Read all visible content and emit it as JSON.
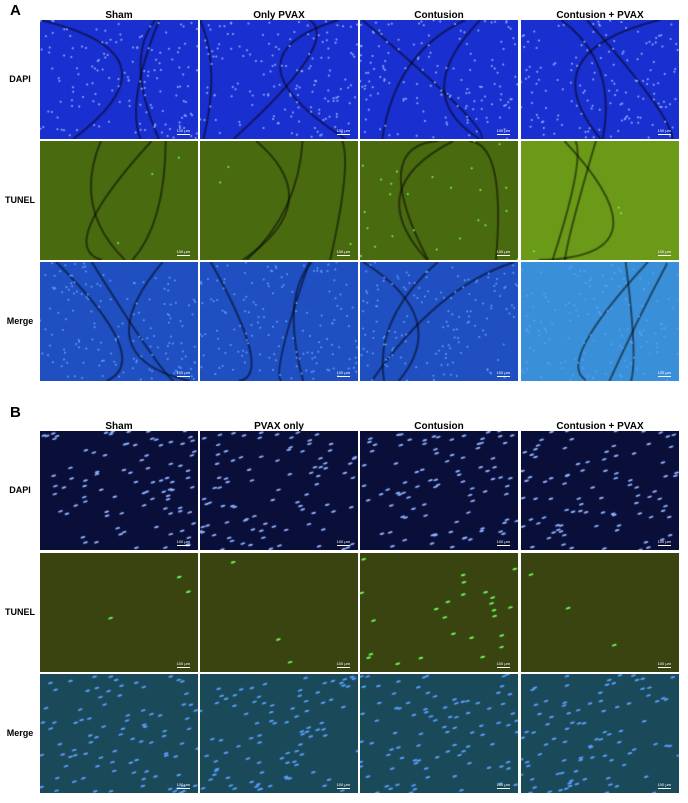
{
  "panels": [
    {
      "label": "A",
      "columns": [
        "Sham",
        "Only PVAX",
        "Contusion",
        "Contusion + PVAX"
      ],
      "rows": [
        "DAPI",
        "TUNEL",
        "Merge"
      ]
    },
    {
      "label": "B",
      "columns": [
        "Sham",
        "PVAX only",
        "Contusion",
        "Contusion + PVAX"
      ],
      "rows": [
        "DAPI",
        "TUNEL",
        "Merge"
      ]
    }
  ],
  "scale_bar": "100 µm",
  "colors": {
    "dapi": "#1a2fd0",
    "tunel": "#4a6a10",
    "merge": "#1f4fc0",
    "tunel_positive": "#6aff5a"
  }
}
